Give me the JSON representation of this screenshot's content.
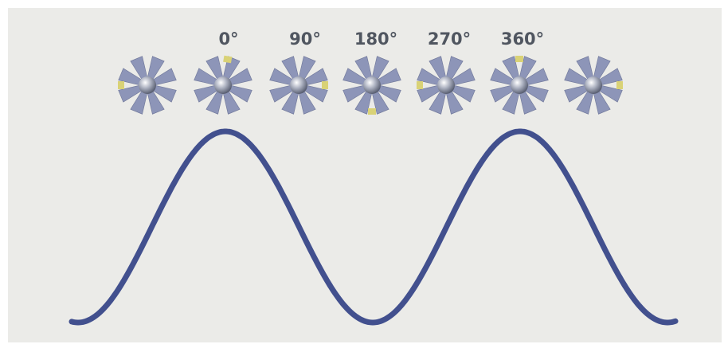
{
  "labels": [
    "0°",
    "90°",
    "180°",
    "270°",
    "360°"
  ]
}
